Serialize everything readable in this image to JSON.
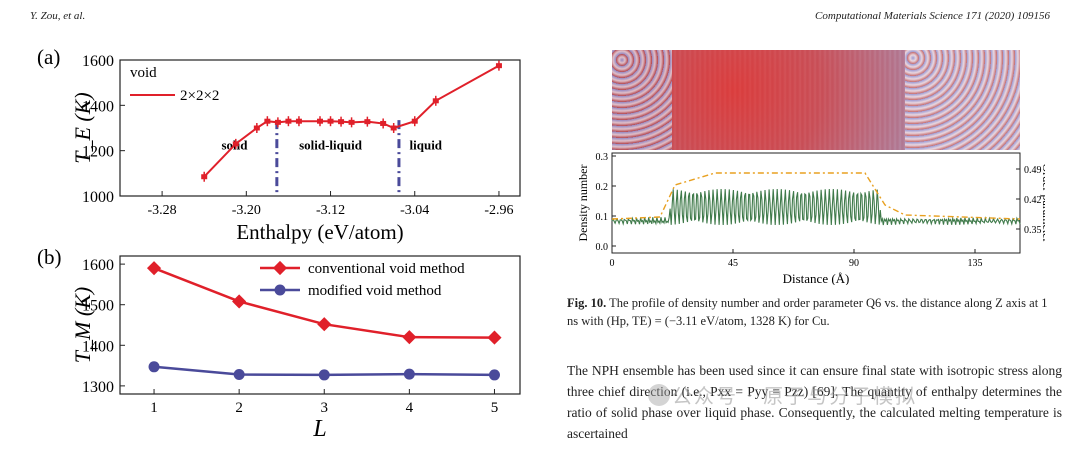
{
  "header": {
    "left": "Y. Zou, et al.",
    "right": "Computational Materials Science 171 (2020) 109156"
  },
  "panel_a": {
    "label": "(a)",
    "legend_title": "void",
    "legend_entry": "2×2×2",
    "region_labels": [
      "solid",
      "solid-liquid",
      "liquid"
    ],
    "color": "#e0202a"
  },
  "panel_b": {
    "label": "(b)",
    "color_conventional": "#e0202a",
    "color_modified": "#4a4a9a"
  },
  "fig10_inset": {
    "ylabel_left": "Density number",
    "ylabel_right": "Order parameter",
    "xlabel": "Distance (Å)",
    "left_ticks": [
      "0.3",
      "0.2",
      "0.1",
      "0.0"
    ],
    "right_ticks": [
      "0.49",
      "0.42",
      "0.35"
    ],
    "x_ticks": [
      "0",
      "45",
      "90",
      "135"
    ],
    "density_color": "#3f7a4a",
    "order_color": "#e8a020"
  },
  "caption": {
    "fig_label": "Fig. 10.",
    "text": "The profile of density number and order parameter Q6 vs. the distance along Z axis at 1 ns with (Hp, TE) = (−3.11 eV/atom, 1328 K) for Cu."
  },
  "body_text": "The NPH ensemble has been used since it can ensure final state with isotropic stress along three chief direction (i.e., Pxx = Pyy = Pzz) [69]. The quantity of enthalpy determines the ratio of solid phase over liquid phase. Consequently, the calculated melting temperature is ascertained",
  "watermark": "公众号 · 原子与分子模拟",
  "chart_data": [
    {
      "type": "line",
      "title": "(a)",
      "xlabel": "Enthalpy (eV/atom)",
      "ylabel": "T_E (K)",
      "xlim": [
        -3.32,
        -2.94
      ],
      "ylim": [
        1000,
        1600
      ],
      "xticks": [
        "-3.28",
        "-3.20",
        "-3.12",
        "-3.04",
        "-2.96"
      ],
      "yticks": [
        "1000",
        "1200",
        "1400",
        "1600"
      ],
      "series": [
        {
          "name": "2×2×2",
          "x": [
            -3.24,
            -3.21,
            -3.19,
            -3.18,
            -3.17,
            -3.16,
            -3.15,
            -3.13,
            -3.12,
            -3.11,
            -3.1,
            -3.085,
            -3.07,
            -3.06,
            -3.04,
            -3.02,
            -2.96
          ],
          "y": [
            1085,
            1230,
            1300,
            1330,
            1325,
            1330,
            1330,
            1330,
            1330,
            1328,
            1325,
            1328,
            1320,
            1300,
            1330,
            1420,
            1575
          ]
        }
      ],
      "vlines": [
        -3.171,
        -3.055
      ]
    },
    {
      "type": "line",
      "title": "(b)",
      "xlabel": "L",
      "ylabel": "T_M (K)",
      "xlim": [
        0.6,
        5.3
      ],
      "ylim": [
        1280,
        1620
      ],
      "xticks": [
        "1",
        "2",
        "3",
        "4",
        "5"
      ],
      "yticks": [
        "1300",
        "1400",
        "1500",
        "1600"
      ],
      "categories": [
        1,
        2,
        3,
        4,
        5
      ],
      "series": [
        {
          "name": "conventional void method",
          "values": [
            1590,
            1508,
            1452,
            1420,
            1419
          ]
        },
        {
          "name": "modified void method",
          "values": [
            1347,
            1328,
            1327,
            1329,
            1327
          ]
        }
      ]
    }
  ]
}
